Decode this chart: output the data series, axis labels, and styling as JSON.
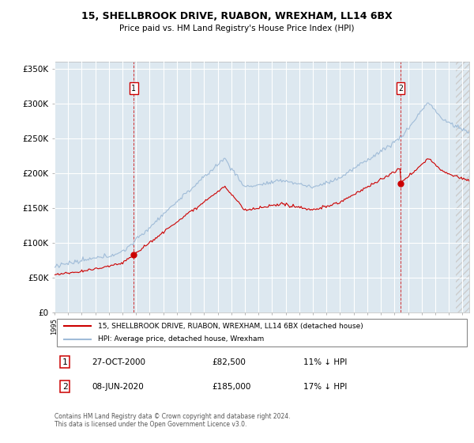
{
  "title_line1": "15, SHELLBROOK DRIVE, RUABON, WREXHAM, LL14 6BX",
  "title_line2": "Price paid vs. HM Land Registry's House Price Index (HPI)",
  "legend_label1": "15, SHELLBROOK DRIVE, RUABON, WREXHAM, LL14 6BX (detached house)",
  "legend_label2": "HPI: Average price, detached house, Wrexham",
  "annotation1_date": "27-OCT-2000",
  "annotation1_price": "£82,500",
  "annotation1_pct": "11% ↓ HPI",
  "annotation2_date": "08-JUN-2020",
  "annotation2_price": "£185,000",
  "annotation2_pct": "17% ↓ HPI",
  "footer": "Contains HM Land Registry data © Crown copyright and database right 2024.\nThis data is licensed under the Open Government Licence v3.0.",
  "sale1_year": 2000.82,
  "sale1_price": 82500,
  "sale2_year": 2020.44,
  "sale2_price": 185000,
  "hpi_color": "#a0bcd8",
  "price_color": "#cc0000",
  "background_color": "#dde8f0",
  "ylim": [
    0,
    360000
  ],
  "xlim_start": 1995,
  "xlim_end": 2025.5,
  "hatch_start": 2024.5
}
